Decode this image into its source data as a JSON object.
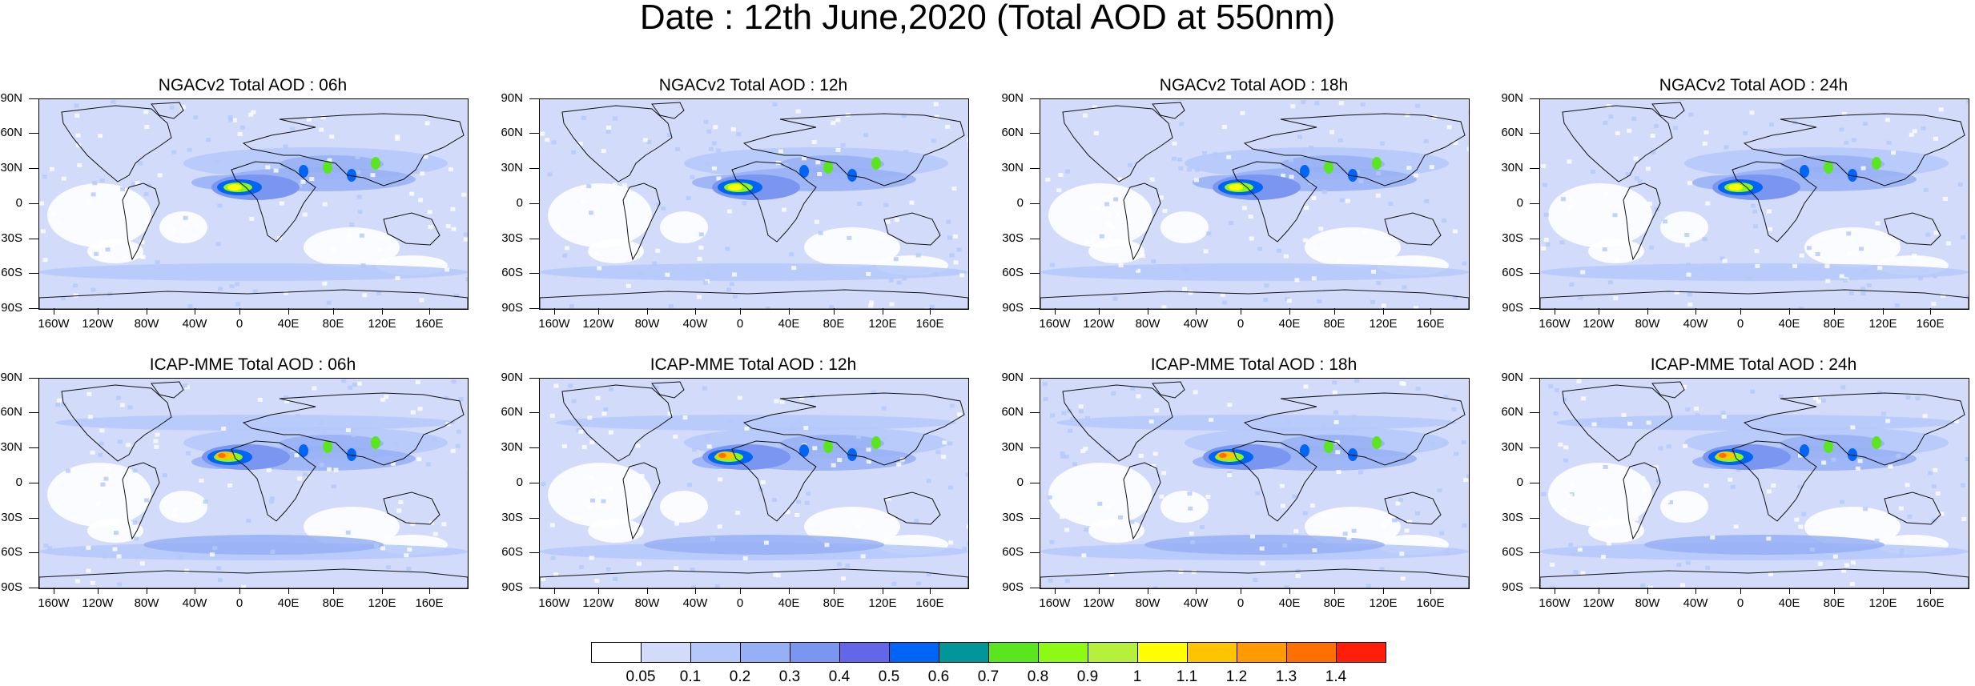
{
  "title": "Date : 12th June,2020 (Total AOD at 550nm)",
  "lat_labels": [
    "90N",
    "60N",
    "30N",
    "0",
    "30S",
    "60S",
    "90S"
  ],
  "lon_labels": [
    "160W",
    "120W",
    "80W",
    "40W",
    "0",
    "40E",
    "80E",
    "120E",
    "160E"
  ],
  "panels": [
    {
      "title": "NGACv2 Total AOD : 06h",
      "model": "NGACv2",
      "hour": "06h"
    },
    {
      "title": "NGACv2 Total AOD : 12h",
      "model": "NGACv2",
      "hour": "12h"
    },
    {
      "title": "NGACv2 Total AOD : 18h",
      "model": "NGACv2",
      "hour": "18h"
    },
    {
      "title": "NGACv2 Total AOD : 24h",
      "model": "NGACv2",
      "hour": "24h"
    },
    {
      "title": "ICAP-MME Total AOD : 06h",
      "model": "ICAP-MME",
      "hour": "06h"
    },
    {
      "title": "ICAP-MME Total AOD : 12h",
      "model": "ICAP-MME",
      "hour": "12h"
    },
    {
      "title": "ICAP-MME Total AOD : 18h",
      "model": "ICAP-MME",
      "hour": "18h"
    },
    {
      "title": "ICAP-MME Total AOD : 24h",
      "model": "ICAP-MME",
      "hour": "24h"
    }
  ],
  "colorbar": {
    "labels": [
      "0.05",
      "0.1",
      "0.2",
      "0.3",
      "0.4",
      "0.5",
      "0.6",
      "0.7",
      "0.8",
      "0.9",
      "1",
      "1.1",
      "1.2",
      "1.3",
      "1.4"
    ],
    "colors": [
      "#ffffff",
      "#d2dcfa",
      "#b4c8fa",
      "#96b0f5",
      "#7b96f0",
      "#6466ea",
      "#0064f5",
      "#00969a",
      "#5ae61e",
      "#8cfa14",
      "#b4f03c",
      "#ffff00",
      "#ffc400",
      "#ff9a00",
      "#ff7000",
      "#ff1e0a"
    ]
  }
}
